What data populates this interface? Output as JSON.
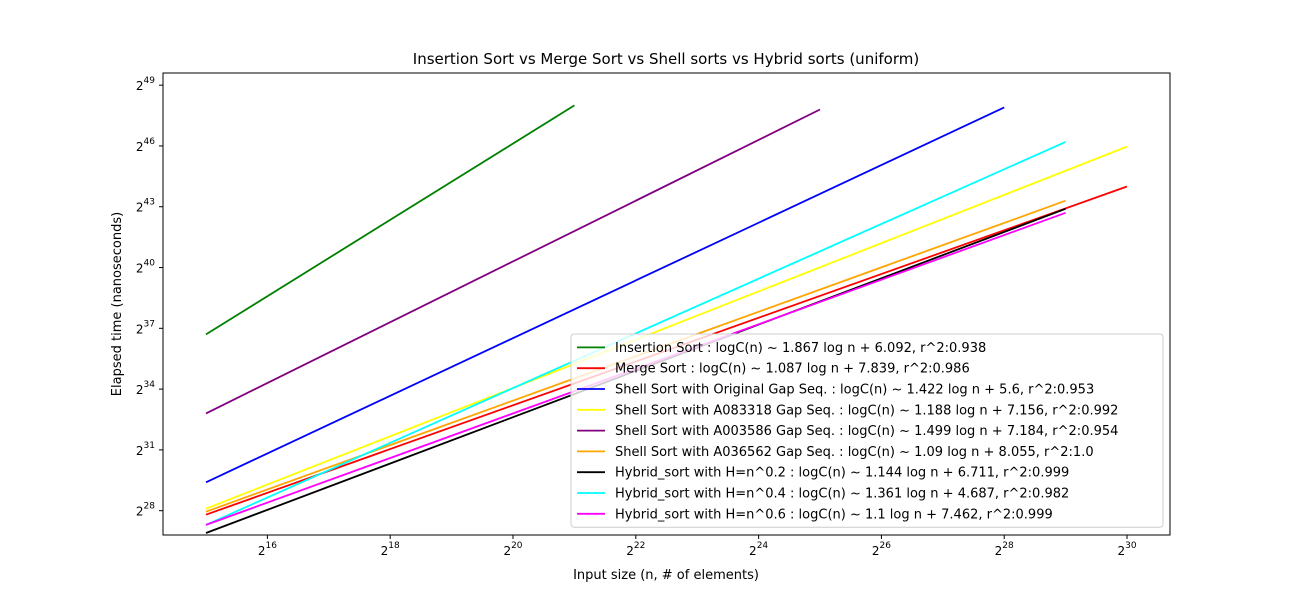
{
  "chart_data": {
    "type": "line",
    "title": "Insertion Sort vs Merge Sort vs Shell sorts vs Hybrid sorts (uniform)",
    "xlabel": "Input size (n, # of elements)",
    "ylabel": "Elapsed time (nanoseconds)",
    "scale": "log2",
    "xlim": [
      14.3,
      30.7
    ],
    "ylim": [
      26.8,
      49.6
    ],
    "x_ticks": [
      16,
      18,
      20,
      22,
      24,
      26,
      28,
      30
    ],
    "y_ticks": [
      28,
      31,
      34,
      37,
      40,
      43,
      46,
      49
    ],
    "tick_base": "2",
    "grid": false,
    "legend_position": "lower-right",
    "series": [
      {
        "name": "Insertion Sort : logC(n) ~ 1.867 log n  + 6.092, r^2:0.938",
        "color": "#008000",
        "x": [
          15,
          21
        ],
        "y": [
          36.7,
          48.0
        ]
      },
      {
        "name": "Merge Sort : logC(n) ~ 1.087 log n  + 7.839, r^2:0.986",
        "color": "#ff0000",
        "x": [
          15,
          30
        ],
        "y": [
          27.8,
          44.0
        ]
      },
      {
        "name": "Shell Sort with Original Gap Seq. : logC(n) ~ 1.422 log n  + 5.6, r^2:0.953",
        "color": "#0000ff",
        "x": [
          15,
          28
        ],
        "y": [
          29.4,
          47.9
        ]
      },
      {
        "name": "Shell Sort with A083318 Gap Seq. : logC(n) ~ 1.188 log n  + 7.156, r^2:0.992",
        "color": "#ffff00",
        "x": [
          15,
          30
        ],
        "y": [
          28.1,
          45.97
        ]
      },
      {
        "name": "Shell Sort with A003586 Gap Seq. : logC(n) ~ 1.499 log n  + 7.184, r^2:0.954",
        "color": "#800080",
        "x": [
          15,
          25
        ],
        "y": [
          32.8,
          47.8
        ]
      },
      {
        "name": "Shell Sort with A036562 Gap Seq. : logC(n) ~ 1.09 log n  + 8.055, r^2:1.0",
        "color": "#ffa500",
        "x": [
          15,
          29
        ],
        "y": [
          27.95,
          43.3
        ]
      },
      {
        "name": "Hybrid_sort with H=n^0.2 : logC(n) ~ 1.144 log n  + 6.711, r^2:0.999",
        "color": "#000000",
        "x": [
          15,
          29
        ],
        "y": [
          26.9,
          42.9
        ]
      },
      {
        "name": "Hybrid_sort with H=n^0.4 : logC(n) ~ 1.361 log n  + 4.687, r^2:0.982",
        "color": "#00ffff",
        "x": [
          15,
          29
        ],
        "y": [
          27.3,
          46.2
        ]
      },
      {
        "name": "Hybrid_sort with H=n^0.6 : logC(n) ~ 1.1 log n  + 7.462, r^2:0.999",
        "color": "#ff00ff",
        "x": [
          15,
          29
        ],
        "y": [
          27.3,
          42.7
        ]
      }
    ]
  }
}
